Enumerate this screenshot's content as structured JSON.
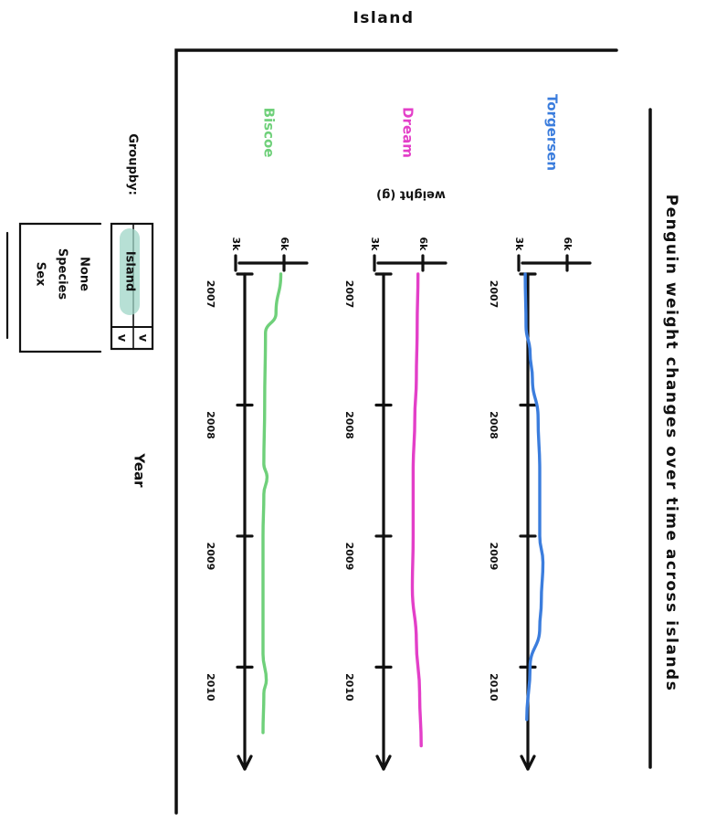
{
  "column_header": "Island",
  "chart_data": {
    "type": "line",
    "title": "Penguin weight changes over time across islands",
    "xlabel": "Year",
    "ylabel": "weight (g)",
    "x": [
      2007,
      2008,
      2009,
      2010
    ],
    "x_tick_labels": [
      "2007",
      "2008",
      "2009",
      "2010"
    ],
    "y_tick_labels": [
      "3k",
      "6k"
    ],
    "ylim": [
      2500,
      6500
    ],
    "facets": [
      {
        "name": "Torgersen",
        "color": "#3b7ddd",
        "points": [
          [
            2007,
            3400
          ],
          [
            2007.4,
            3450
          ],
          [
            2007.6,
            3700
          ],
          [
            2007.8,
            3850
          ],
          [
            2008.1,
            4200
          ],
          [
            2008.5,
            4300
          ],
          [
            2009,
            4300
          ],
          [
            2009.2,
            4500
          ],
          [
            2009.5,
            4400
          ],
          [
            2009.7,
            4300
          ],
          [
            2010,
            3700
          ],
          [
            2010.4,
            3500
          ]
        ]
      },
      {
        "name": "Dream",
        "color": "#e33fc8",
        "points": [
          [
            2007,
            5700
          ],
          [
            2007.4,
            5650
          ],
          [
            2007.8,
            5600
          ],
          [
            2008.1,
            5500
          ],
          [
            2008.5,
            5400
          ],
          [
            2009,
            5400
          ],
          [
            2009.4,
            5350
          ],
          [
            2009.8,
            5600
          ],
          [
            2010.2,
            5800
          ],
          [
            2010.6,
            5900
          ]
        ]
      },
      {
        "name": "Biscoe",
        "color": "#6fd07a",
        "points": [
          [
            2007,
            5800
          ],
          [
            2007.3,
            5500
          ],
          [
            2007.45,
            4850
          ],
          [
            2008,
            4800
          ],
          [
            2008.45,
            4750
          ],
          [
            2008.55,
            4950
          ],
          [
            2008.68,
            4750
          ],
          [
            2009,
            4700
          ],
          [
            2009.5,
            4700
          ],
          [
            2009.9,
            4700
          ],
          [
            2010.1,
            4900
          ],
          [
            2010.2,
            4750
          ],
          [
            2010.5,
            4700
          ]
        ]
      }
    ],
    "grid": false,
    "legend": "none"
  },
  "groupby": {
    "label": "Groupby:",
    "selected": "Island",
    "toggle_glyph": "v",
    "options": [
      "None",
      "Species",
      "Sex"
    ]
  }
}
